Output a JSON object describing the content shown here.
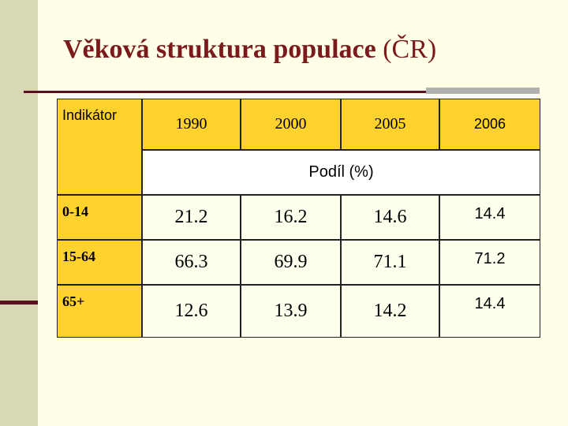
{
  "title": {
    "main": "Věková struktura populace",
    "suffix": "(ČR)"
  },
  "table": {
    "header": [
      "Indikátor",
      "1990",
      "2000",
      "2005",
      "2006"
    ],
    "subheader": "Podíl (%)",
    "rows": [
      [
        "0-14",
        21.2,
        16.2,
        14.6,
        14.4
      ],
      [
        "15-64",
        66.3,
        69.9,
        71.1,
        71.2
      ],
      [
        "65+",
        12.6,
        13.9,
        14.2,
        14.4
      ]
    ]
  }
}
